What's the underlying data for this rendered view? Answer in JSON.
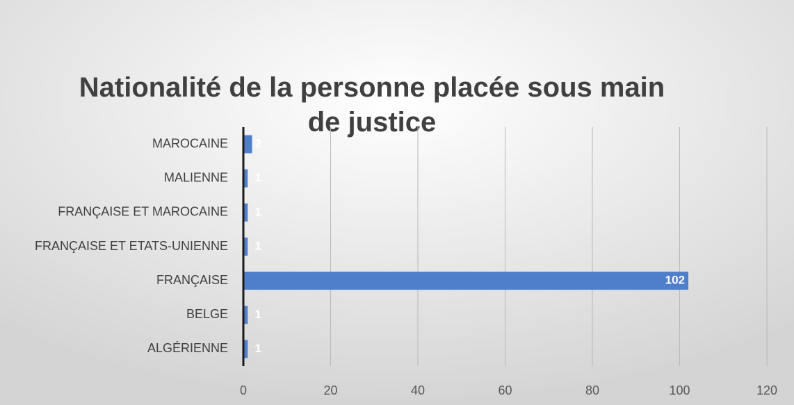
{
  "chart_data": {
    "type": "bar",
    "orientation": "horizontal",
    "title": "Nationalité de la personne placée sous main de justice",
    "categories": [
      "ALGÉRIENNE",
      "BELGE",
      "FRANÇAISE",
      "FRANÇAISE ET ETATS-UNIENNE",
      "FRANÇAISE ET MAROCAINE",
      "MALIENNE",
      "MAROCAINE"
    ],
    "values": [
      1,
      1,
      102,
      1,
      1,
      1,
      2
    ],
    "color": "#4f7ecb",
    "xlim": [
      0,
      120
    ],
    "xticks": [
      0,
      20,
      40,
      60,
      80,
      100,
      120
    ],
    "grid": true
  }
}
